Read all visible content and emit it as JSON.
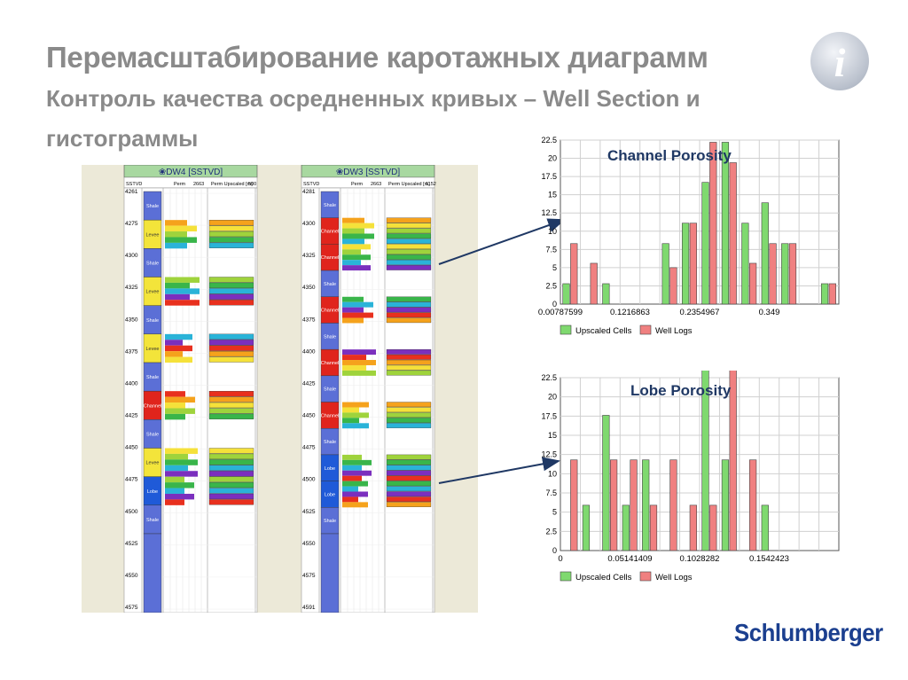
{
  "slide": {
    "title_line1": "Перемасштабирование каротажных диаграмм",
    "title_line2": "Контроль качества осредненных кривых – Well Section  и",
    "title_line3": "гистограммы",
    "logo": "Schlumberger",
    "info_icon": "info-icon",
    "colors": {
      "title": "#8a8a8a",
      "accent": "#1f3864",
      "logo": "#1b3f8f"
    }
  },
  "wells": [
    {
      "header": "DW4 [SSTVD]",
      "col_labels": [
        "SSTVD",
        "Perm",
        "2663",
        "Perm Upscaled [m]",
        "500"
      ],
      "depth_ticks": [
        "4261",
        "4275",
        "4300",
        "4325",
        "4350",
        "4375",
        "4400",
        "4425",
        "4450",
        "4475",
        "4500",
        "4525",
        "4550",
        "4575"
      ],
      "zones": [
        "Shale",
        "Levee",
        "Shale",
        "Levee",
        "Shale",
        "Levee",
        "Shale",
        "Channel",
        "Shale",
        "Levee",
        "Lobe",
        "Shale"
      ]
    },
    {
      "header": "DW3 [SSTVD]",
      "col_labels": [
        "SSTVD",
        "Perm",
        "2663",
        "Perm Upscaled [m]",
        "1152"
      ],
      "depth_ticks": [
        "4281",
        "4300",
        "4325",
        "4350",
        "4375",
        "4400",
        "4425",
        "4450",
        "4475",
        "4500",
        "4525",
        "4550",
        "4575",
        "4591"
      ],
      "zones": [
        "Shale",
        "Channel",
        "Channel",
        "Shale",
        "Channel",
        "Shale",
        "Channel",
        "Shale",
        "Channel",
        "Shale",
        "Lobe",
        "Lobe",
        "Shale"
      ]
    }
  ],
  "chart_data": [
    {
      "type": "bar",
      "title": "Channel Porosity",
      "ylim": [
        0,
        22.5
      ],
      "yticks": [
        "0",
        "2.5",
        "5",
        "7.5",
        "10",
        "12.5",
        "15",
        "17.5",
        "20",
        "22.5"
      ],
      "xtick_labels": [
        "0.00787599",
        "0.1216863",
        "0.2354967",
        "0.349"
      ],
      "categories_count": 14,
      "series": [
        {
          "name": "Upscaled Cells",
          "color": "#7fd96f",
          "values": [
            2.8,
            0,
            2.8,
            0,
            0,
            8.3,
            11.1,
            16.7,
            22.2,
            11.1,
            13.9,
            8.3,
            0,
            2.8
          ]
        },
        {
          "name": "Well Logs",
          "color": "#f08080",
          "values": [
            8.3,
            5.6,
            0,
            0,
            0,
            5.0,
            11.1,
            22.2,
            19.4,
            5.6,
            8.3,
            8.3,
            0,
            2.8
          ]
        }
      ],
      "legend": "bottom"
    },
    {
      "type": "bar",
      "title": "Lobe Porosity",
      "ylim": [
        0,
        22.5
      ],
      "yticks": [
        "0",
        "2.5",
        "5",
        "7.5",
        "10",
        "12.5",
        "15",
        "17.5",
        "20",
        "22.5"
      ],
      "xtick_labels": [
        "0",
        "0.05141409",
        "0.1028282",
        "0.1542423"
      ],
      "categories_count": 14,
      "series": [
        {
          "name": "Upscaled Cells",
          "color": "#7fd96f",
          "values": [
            0,
            5.9,
            17.6,
            5.9,
            11.8,
            0,
            0,
            23.5,
            11.8,
            0,
            5.9,
            0,
            0,
            0
          ]
        },
        {
          "name": "Well Logs",
          "color": "#f08080",
          "values": [
            11.8,
            0,
            11.8,
            11.8,
            5.9,
            11.8,
            5.9,
            5.9,
            23.5,
            11.8,
            0,
            0,
            0,
            0
          ]
        }
      ],
      "legend": "bottom"
    }
  ]
}
